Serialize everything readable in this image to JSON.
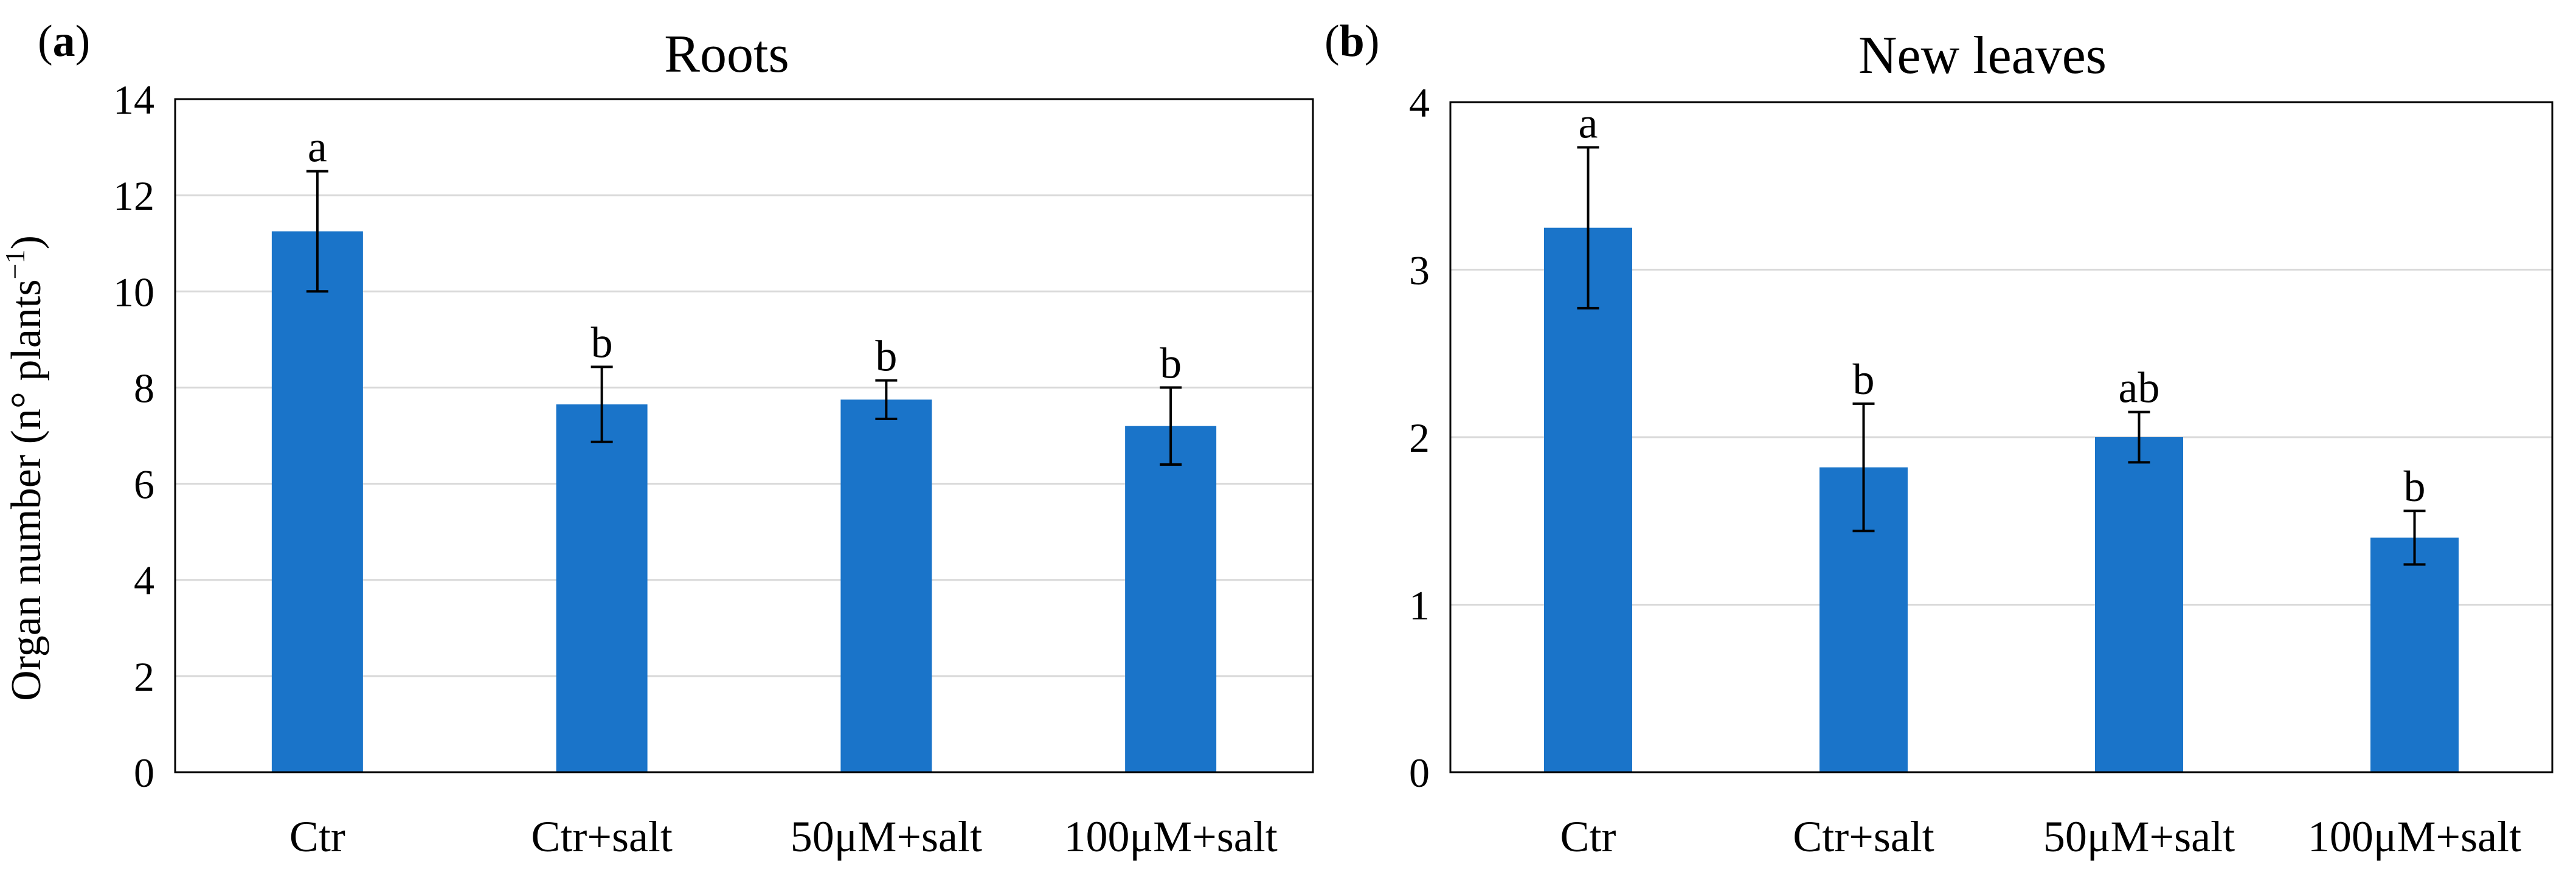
{
  "figure": {
    "ylabel_text": "Organ number (n° plants",
    "ylabel_sup": "−1",
    "ylabel_close": ")",
    "bar_color": "#1a74c9"
  },
  "chart_data": [
    {
      "type": "bar",
      "panel_prefix": "(",
      "panel_letter": "a",
      "panel_suffix": ")",
      "title": "Roots",
      "categories": [
        "Ctr",
        "Ctr+salt",
        "50μM+salt",
        "100μM+salt"
      ],
      "values": [
        11.25,
        7.65,
        7.75,
        7.2
      ],
      "errors": [
        1.25,
        0.78,
        0.4,
        0.8
      ],
      "significance": [
        "a",
        "b",
        "b",
        "b"
      ],
      "ylim": [
        0,
        14
      ],
      "yticks": [
        0,
        2,
        4,
        6,
        8,
        10,
        12,
        14
      ],
      "ylabel": "Organ number (n° plants−1)",
      "grid": true
    },
    {
      "type": "bar",
      "panel_prefix": "(",
      "panel_letter": "b",
      "panel_suffix": ")",
      "title": "New leaves",
      "categories": [
        "Ctr",
        "Ctr+salt",
        "50μM+salt",
        "100μM+salt"
      ],
      "values": [
        3.25,
        1.82,
        2.0,
        1.4
      ],
      "errors": [
        0.48,
        0.38,
        0.15,
        0.16
      ],
      "significance": [
        "a",
        "b",
        "ab",
        "b"
      ],
      "ylim": [
        0,
        4
      ],
      "yticks": [
        0,
        1,
        2,
        3,
        4
      ],
      "ylabel": "",
      "grid": true
    }
  ]
}
